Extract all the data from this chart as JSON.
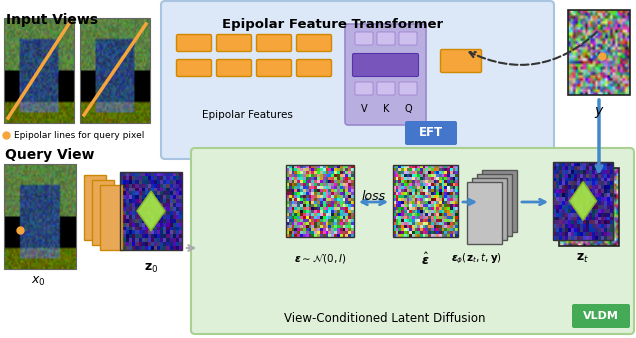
{
  "bg_color": "#ffffff",
  "eft_box_color": "#dce8f7",
  "eft_box_edge": "#a8c4e0",
  "vldm_box_color": "#dff0d8",
  "vldm_box_edge": "#a8d090",
  "orange_color": "#f5a53a",
  "orange_edge": "#d08800",
  "purple_bg": "#b8aee0",
  "purple_dark": "#7755bb",
  "purple_light": "#cec0ee",
  "blue_btn": "#4477cc",
  "green_btn": "#44aa55",
  "arrow_blue": "#4488cc",
  "dashed_color": "#333333",
  "input_views_label": "Input Views",
  "query_view_label": "Query View",
  "eft_title": "Epipolar Feature Transformer",
  "epipolar_feat_label": "Epipolar Features",
  "eft_btn_label": "EFT",
  "vldm_label": "View-Conditioned Latent Diffusion",
  "vldm_btn_label": "VLDM",
  "loss_label": "loss",
  "epipolar_note": "Epipolar lines for query pixel"
}
